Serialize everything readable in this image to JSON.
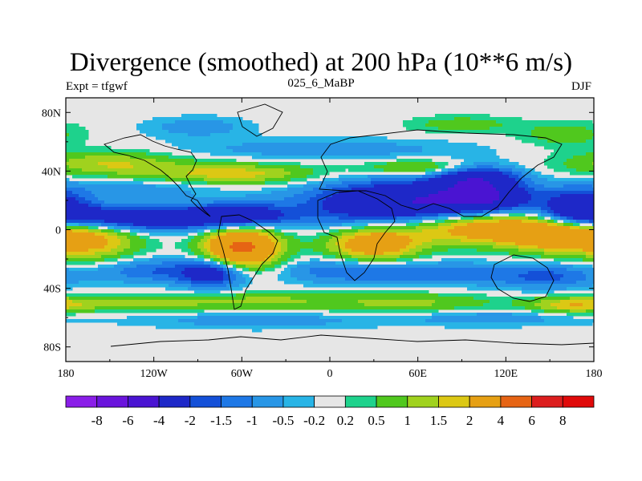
{
  "header": {
    "title": "Divergence (smoothed) at 200 hPa (10**6 m/s)",
    "left_label": "Expt = tfgwf",
    "center_label": "025_6_MaBP",
    "right_label": "DJF"
  },
  "chart_data": {
    "type": "heatmap",
    "variable": "Divergence (smoothed) at 200 hPa",
    "units": "10**6 m/s",
    "experiment": "tfgwf",
    "case": "025_6_MaBP",
    "season": "DJF",
    "projection": "cylindrical equidistant",
    "x_range": [
      -180,
      180
    ],
    "y_range": [
      -90,
      90
    ],
    "x_ticks": [
      {
        "value": -180,
        "label": "180"
      },
      {
        "value": -120,
        "label": "120W"
      },
      {
        "value": -60,
        "label": "60W"
      },
      {
        "value": 0,
        "label": "0"
      },
      {
        "value": 60,
        "label": "60E"
      },
      {
        "value": 120,
        "label": "120E"
      },
      {
        "value": 180,
        "label": "180"
      }
    ],
    "y_ticks": [
      {
        "value": 80,
        "label": "80N"
      },
      {
        "value": 40,
        "label": "40N"
      },
      {
        "value": 0,
        "label": "0"
      },
      {
        "value": -40,
        "label": "40S"
      },
      {
        "value": -80,
        "label": "80S"
      }
    ],
    "levels": [
      -8,
      -6,
      -4,
      -2,
      -1.5,
      -1,
      -0.5,
      -0.2,
      0.2,
      0.5,
      1,
      1.5,
      2,
      4,
      6,
      8
    ],
    "level_labels": [
      "-8",
      "-6",
      "-4",
      "-2",
      "-1.5",
      "-1",
      "-0.5",
      "-0.2",
      "0.2",
      "0.5",
      "1",
      "1.5",
      "2",
      "4",
      "6",
      "8"
    ],
    "colors": [
      "#8a1ee8",
      "#6a14dc",
      "#4a14d2",
      "#1e28c8",
      "#1450d8",
      "#1e78e6",
      "#2896e6",
      "#28b4e6",
      "#e6e6e6",
      "#1ed28c",
      "#50c81e",
      "#a0d21e",
      "#dcc814",
      "#e6a014",
      "#e66414",
      "#dc1e1e",
      "#e00a0a"
    ],
    "features": [
      {
        "lon": -130,
        "lat": 8,
        "sigma_lon": 55,
        "sigma_lat": 6,
        "value": -3.5
      },
      {
        "lon": -60,
        "lat": 10,
        "sigma_lon": 22,
        "sigma_lat": 6,
        "value": -2.0
      },
      {
        "lon": 50,
        "lat": 18,
        "sigma_lon": 45,
        "sigma_lat": 11,
        "value": -4.0
      },
      {
        "lon": 105,
        "lat": 22,
        "sigma_lon": 22,
        "sigma_lat": 7,
        "value": -3.0
      },
      {
        "lon": 100,
        "lat": 36,
        "sigma_lon": 20,
        "sigma_lat": 6,
        "value": -3.0
      },
      {
        "lon": 170,
        "lat": 15,
        "sigma_lon": 18,
        "sigma_lat": 9,
        "value": -3.0
      },
      {
        "lon": -130,
        "lat": 28,
        "sigma_lon": 40,
        "sigma_lat": 5,
        "value": -0.8
      },
      {
        "lon": -150,
        "lat": 45,
        "sigma_lon": 35,
        "sigma_lat": 6,
        "value": 1.5
      },
      {
        "lon": -65,
        "lat": 38,
        "sigma_lon": 40,
        "sigma_lat": 5,
        "value": 1.8
      },
      {
        "lon": 65,
        "lat": 42,
        "sigma_lon": 30,
        "sigma_lat": 4,
        "value": 1.5
      },
      {
        "lon": -5,
        "lat": 55,
        "sigma_lon": 70,
        "sigma_lat": 5,
        "value": -0.8
      },
      {
        "lon": -90,
        "lat": 70,
        "sigma_lon": 25,
        "sigma_lat": 5,
        "value": -0.8
      },
      {
        "lon": 90,
        "lat": 72,
        "sigma_lon": 25,
        "sigma_lat": 4,
        "value": 0.8
      },
      {
        "lon": 160,
        "lat": 65,
        "sigma_lon": 22,
        "sigma_lat": 6,
        "value": 0.8
      },
      {
        "lon": -60,
        "lat": -12,
        "sigma_lon": 18,
        "sigma_lat": 10,
        "value": 4.5
      },
      {
        "lon": -160,
        "lat": -8,
        "sigma_lon": 22,
        "sigma_lat": 10,
        "value": 1.8
      },
      {
        "lon": 30,
        "lat": -10,
        "sigma_lon": 22,
        "sigma_lat": 8,
        "value": 3.0
      },
      {
        "lon": 110,
        "lat": 2,
        "sigma_lon": 45,
        "sigma_lat": 8,
        "value": 3.5
      },
      {
        "lon": 160,
        "lat": -5,
        "sigma_lon": 25,
        "sigma_lat": 8,
        "value": 2.5
      },
      {
        "lon": -120,
        "lat": -28,
        "sigma_lon": 30,
        "sigma_lat": 6,
        "value": -1.5
      },
      {
        "lon": -80,
        "lat": -30,
        "sigma_lon": 15,
        "sigma_lat": 7,
        "value": -2.5
      },
      {
        "lon": 5,
        "lat": -28,
        "sigma_lon": 30,
        "sigma_lat": 6,
        "value": -1.2
      },
      {
        "lon": 75,
        "lat": -30,
        "sigma_lon": 40,
        "sigma_lat": 6,
        "value": -1.2
      },
      {
        "lon": 150,
        "lat": -32,
        "sigma_lon": 25,
        "sigma_lat": 6,
        "value": -1.5
      },
      {
        "lon": -130,
        "lat": -50,
        "sigma_lon": 55,
        "sigma_lat": 4,
        "value": 1.2
      },
      {
        "lon": 50,
        "lat": -50,
        "sigma_lon": 40,
        "sigma_lat": 5,
        "value": 1.2
      },
      {
        "lon": 165,
        "lat": -52,
        "sigma_lon": 20,
        "sigma_lat": 4,
        "value": 1.5
      },
      {
        "lon": -40,
        "lat": -48,
        "sigma_lon": 30,
        "sigma_lat": 4,
        "value": 0.8
      },
      {
        "lon": -50,
        "lat": -62,
        "sigma_lon": 55,
        "sigma_lat": 4,
        "value": -0.8
      },
      {
        "lon": 110,
        "lat": -60,
        "sigma_lon": 50,
        "sigma_lat": 4,
        "value": -0.8
      }
    ]
  }
}
